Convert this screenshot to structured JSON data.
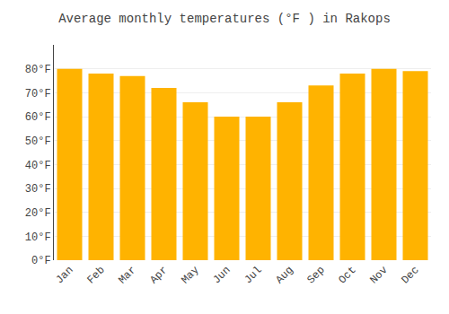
{
  "chart_data": {
    "type": "bar",
    "title": "Average monthly temperatures (°F ) in Rakops",
    "categories": [
      "Jan",
      "Feb",
      "Mar",
      "Apr",
      "May",
      "Jun",
      "Jul",
      "Aug",
      "Sep",
      "Oct",
      "Nov",
      "Dec"
    ],
    "values": [
      80,
      78,
      77,
      72,
      66,
      60,
      60,
      66,
      73,
      78,
      80,
      79
    ],
    "color": "#FFB300",
    "ylim": [
      0,
      90
    ],
    "yticks": [
      {
        "value": 0,
        "label": "0°F"
      },
      {
        "value": 10,
        "label": "10°F"
      },
      {
        "value": 20,
        "label": "20°F"
      },
      {
        "value": 30,
        "label": "30°F"
      },
      {
        "value": 40,
        "label": "40°F"
      },
      {
        "value": 50,
        "label": "50°F"
      },
      {
        "value": 60,
        "label": "60°F"
      },
      {
        "value": 70,
        "label": "70°F"
      },
      {
        "value": 80,
        "label": "80°F"
      }
    ],
    "grid": true
  }
}
